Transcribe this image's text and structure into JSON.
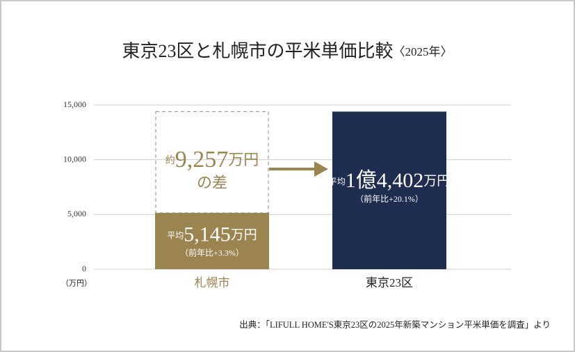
{
  "chart_data": {
    "type": "bar",
    "title": "東京23区と札幌市の平米単価比較",
    "subtitle": "〈2025年〉",
    "categories": [
      "札幌市",
      "東京23区"
    ],
    "values": [
      5145,
      14402
    ],
    "value_labels": [
      "5,145",
      "1億4,402"
    ],
    "value_prefix": "平均",
    "value_unit": "万円",
    "change_labels": [
      "（前年比+3.3%）",
      "（前年比+20.1%）"
    ],
    "colors": [
      "#9c8451",
      "#1e2d50"
    ],
    "difference": {
      "prefix": "約",
      "value": 9257,
      "label": "9,257",
      "unit": "万円",
      "suffix": "の差"
    },
    "y_unit": "（万円）",
    "ylim": [
      0,
      15000
    ],
    "yticks": [
      0,
      {
        "value": 5000,
        "label": "5,000"
      },
      {
        "value": 10000,
        "label": "10,000"
      },
      {
        "value": 15000,
        "label": "15,000"
      }
    ],
    "grid": true,
    "source": "出典：「LIFULL HOME'S東京23区の2025年新築マンション平米単価を調査」より"
  }
}
